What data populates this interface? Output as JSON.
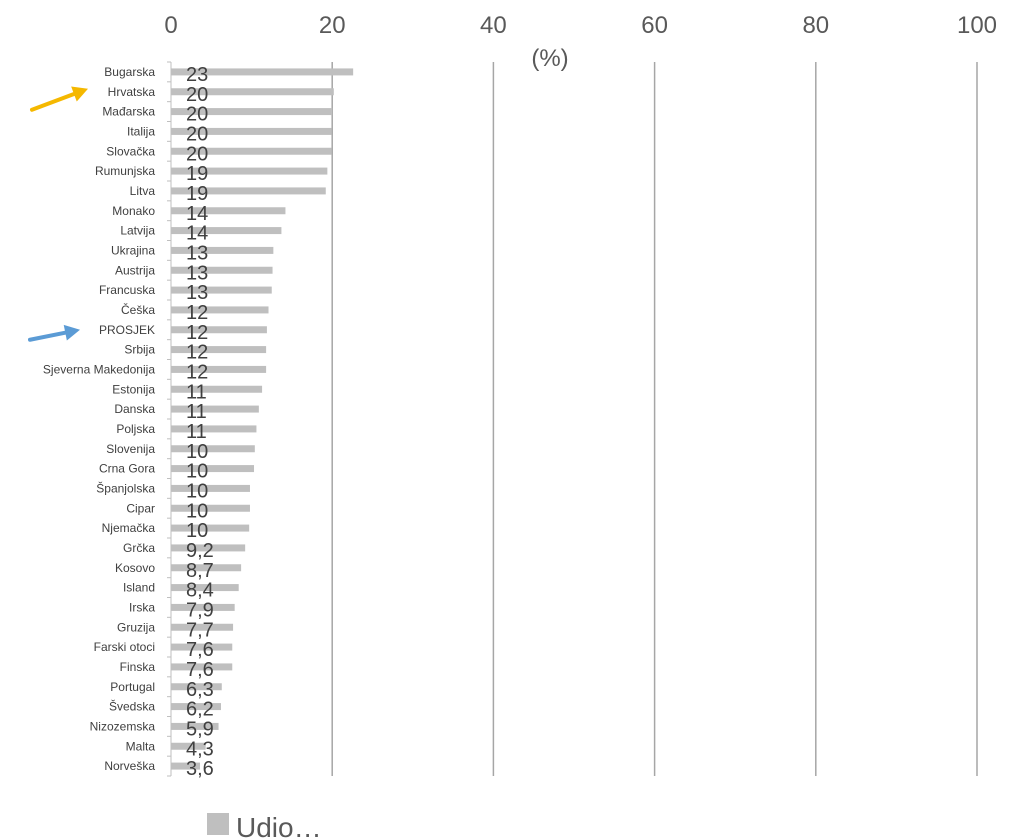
{
  "chart_data": {
    "type": "bar",
    "orientation": "horizontal",
    "unit_label": "(%)",
    "xlim": [
      0,
      100
    ],
    "ticks": [
      "0",
      "20",
      "40",
      "60",
      "80",
      "100"
    ],
    "grid": true,
    "legend_position": "bottom",
    "categories": [
      "Bugarska",
      "Hrvatska",
      "Mađarska",
      "Italija",
      "Slovačka",
      "Rumunjska",
      "Litva",
      "Monako",
      "Latvija",
      "Ukrajina",
      "Austrija",
      "Francuska",
      "Češka",
      "PROSJEK",
      "Srbija",
      "Sjeverna Makedonija",
      "Estonija",
      "Danska",
      "Poljska",
      "Slovenija",
      "Crna Gora",
      "Španjolska",
      "Cipar",
      "Njemačka",
      "Grčka",
      "Kosovo",
      "Island",
      "Irska",
      "Gruzija",
      "Farski otoci",
      "Finska",
      "Portugal",
      "Švedska",
      "Nizozemska",
      "Malta",
      "Norveška"
    ],
    "values": [
      22.6,
      20.2,
      20.0,
      19.9,
      19.9,
      19.4,
      19.2,
      14.2,
      13.7,
      12.7,
      12.6,
      12.5,
      12.1,
      11.9,
      11.8,
      11.8,
      11.3,
      10.9,
      10.6,
      10.4,
      10.3,
      9.8,
      9.8,
      9.7,
      9.2,
      8.7,
      8.4,
      7.9,
      7.7,
      7.6,
      7.6,
      6.3,
      6.2,
      5.9,
      4.3,
      3.6
    ],
    "value_labels": [
      "23",
      "20",
      "20",
      "20",
      "20",
      "19",
      "19",
      "14",
      "14",
      "13",
      "13",
      "13",
      "12",
      "12",
      "12",
      "12",
      "11",
      "11",
      "11",
      "10",
      "10",
      "10",
      "10",
      "10",
      "9,2",
      "8,7",
      "8,4",
      "7,9",
      "7,7",
      "7,6",
      "7,6",
      "6,3",
      "6,2",
      "5,9",
      "4,3",
      "3,6"
    ],
    "series": [
      {
        "name": "Udio…"
      }
    ],
    "highlight": [
      {
        "category": "Hrvatska",
        "arrow_color": "#F5B800"
      },
      {
        "category": "PROSJEK",
        "arrow_color": "#5B9BD5"
      }
    ],
    "colors": {
      "bar": "#BFBFBF",
      "grid": "#A6A6A6",
      "axis": "#BFBFBF"
    }
  }
}
